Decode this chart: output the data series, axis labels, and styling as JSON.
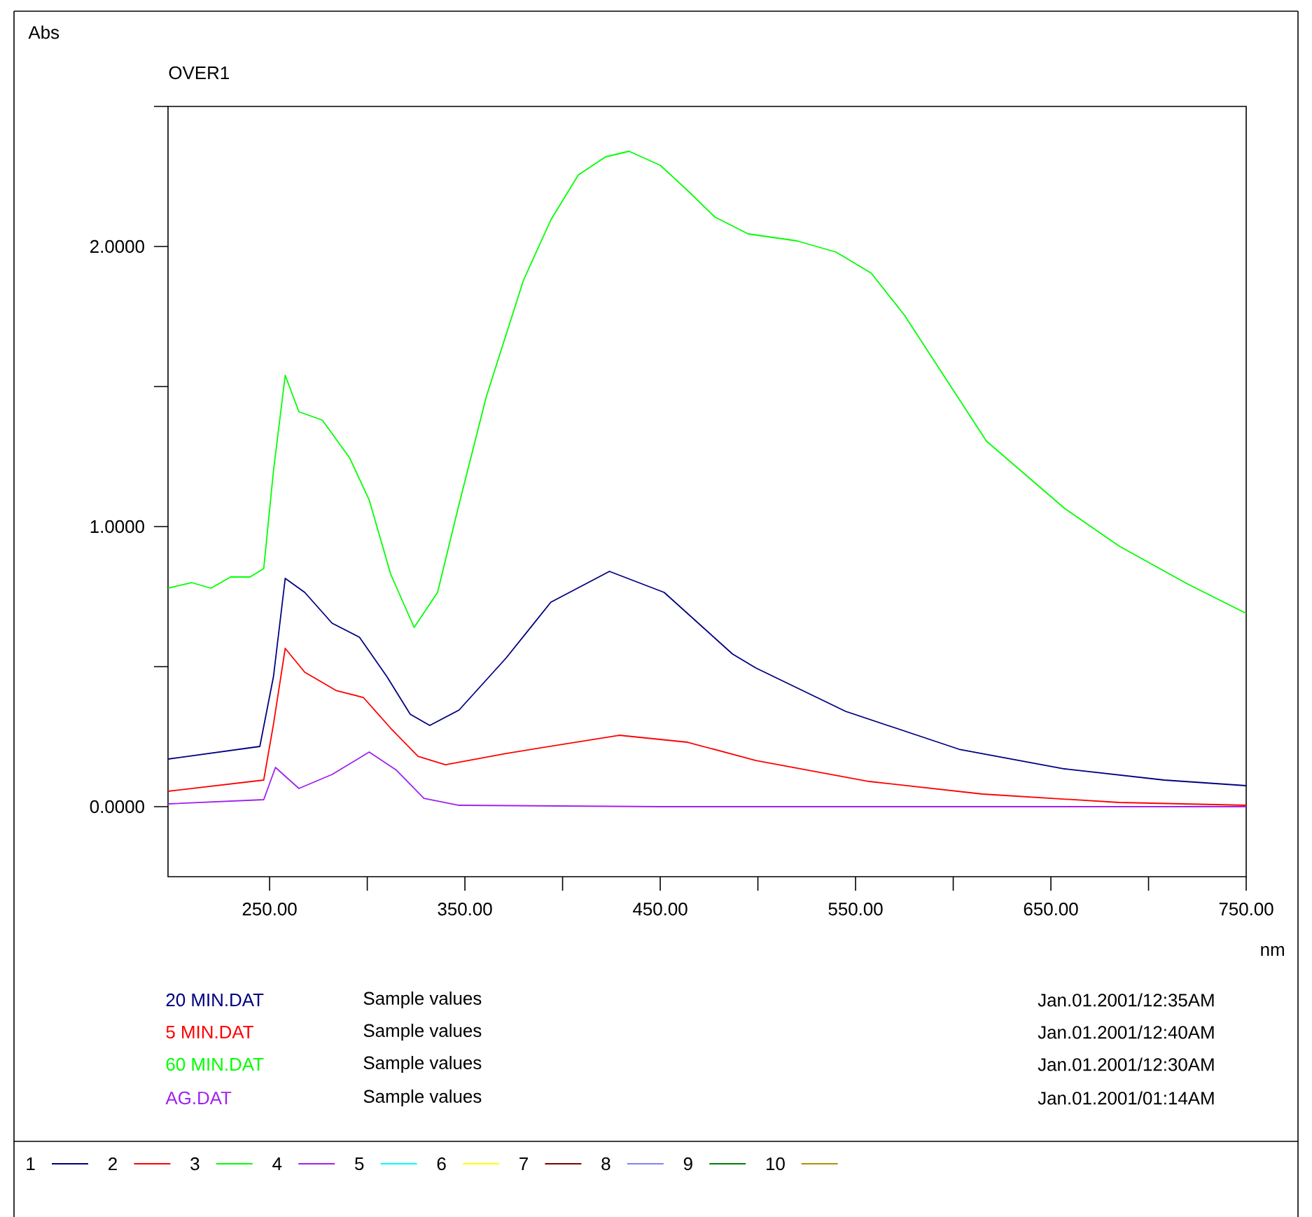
{
  "chart_data": {
    "type": "line",
    "title": "OVER1",
    "xlabel": "nm",
    "ylabel": "Abs",
    "xlim": [
      198,
      750
    ],
    "ylim": [
      -0.25,
      2.5
    ],
    "xticks": [
      {
        "value": 250,
        "label": "250.00"
      },
      {
        "value": 300,
        "label": null
      },
      {
        "value": 350,
        "label": "350.00"
      },
      {
        "value": 400,
        "label": null
      },
      {
        "value": 450,
        "label": "450.00"
      },
      {
        "value": 500,
        "label": null
      },
      {
        "value": 550,
        "label": "550.00"
      },
      {
        "value": 600,
        "label": null
      },
      {
        "value": 650,
        "label": "650.00"
      },
      {
        "value": 700,
        "label": null
      },
      {
        "value": 750,
        "label": "750.00"
      }
    ],
    "yticks": [
      {
        "value": 0,
        "label": "0.0000"
      },
      {
        "value": 0.5,
        "label": null
      },
      {
        "value": 1,
        "label": "1.0000"
      },
      {
        "value": 1.5,
        "label": null
      },
      {
        "value": 2,
        "label": "2.0000"
      },
      {
        "value": 2.5,
        "label": null
      }
    ],
    "series": [
      {
        "name": "20 MIN.DAT",
        "color": "#000080",
        "x": [
          198,
          245,
          252,
          258,
          268,
          282,
          296,
          310,
          322,
          332,
          347,
          371,
          394,
          424,
          452,
          487,
          499,
          545,
          603,
          657,
          708,
          750
        ],
        "values": [
          0.17,
          0.215,
          0.465,
          0.815,
          0.765,
          0.655,
          0.605,
          0.465,
          0.33,
          0.29,
          0.345,
          0.53,
          0.73,
          0.84,
          0.765,
          0.545,
          0.495,
          0.34,
          0.205,
          0.135,
          0.095,
          0.075
        ]
      },
      {
        "name": "5 MIN.DAT",
        "color": "#ff0000",
        "x": [
          198,
          247,
          252,
          258,
          268,
          284,
          298,
          312,
          326,
          340,
          371,
          429,
          464,
          499,
          557,
          615,
          685,
          750
        ],
        "values": [
          0.055,
          0.095,
          0.295,
          0.565,
          0.48,
          0.415,
          0.39,
          0.28,
          0.18,
          0.15,
          0.19,
          0.255,
          0.23,
          0.165,
          0.09,
          0.045,
          0.015,
          0.005
        ]
      },
      {
        "name": "60 MIN.DAT",
        "color": "#00ff00",
        "x": [
          198,
          210,
          220,
          230,
          240,
          247,
          252,
          258,
          265,
          277,
          291,
          301,
          312,
          324,
          336,
          347,
          361,
          380,
          394,
          408,
          422,
          434,
          450,
          464,
          478,
          495,
          520,
          540,
          558,
          575,
          596,
          617,
          657,
          685,
          720,
          750
        ],
        "values": [
          0.78,
          0.8,
          0.78,
          0.82,
          0.82,
          0.85,
          1.2,
          1.54,
          1.41,
          1.38,
          1.245,
          1.095,
          0.83,
          0.64,
          0.765,
          1.08,
          1.465,
          1.88,
          2.095,
          2.255,
          2.32,
          2.34,
          2.29,
          2.2,
          2.105,
          2.045,
          2.02,
          1.98,
          1.905,
          1.755,
          1.53,
          1.305,
          1.065,
          0.93,
          0.795,
          0.69
        ]
      },
      {
        "name": "AG.DAT",
        "color": "#a020f0",
        "x": [
          198,
          247,
          253,
          265,
          282,
          301,
          315,
          329,
          347,
          450,
          550,
          650,
          750
        ],
        "values": [
          0.01,
          0.025,
          0.14,
          0.065,
          0.115,
          0.195,
          0.13,
          0.03,
          0.005,
          0.0,
          0.0,
          0.0,
          0.0
        ]
      }
    ],
    "annotations": [
      "Sample values",
      "Sample values",
      "Sample values",
      "Sample values",
      "Jan.01.2001/12:35AM",
      "Jan.01.2001/12:40AM",
      "Jan.01.2001/12:30AM",
      "Jan.01.2001/01:14AM",
      "1",
      "2",
      "3",
      "4",
      "5",
      "6",
      "7",
      "8",
      "9",
      "10"
    ]
  }
}
